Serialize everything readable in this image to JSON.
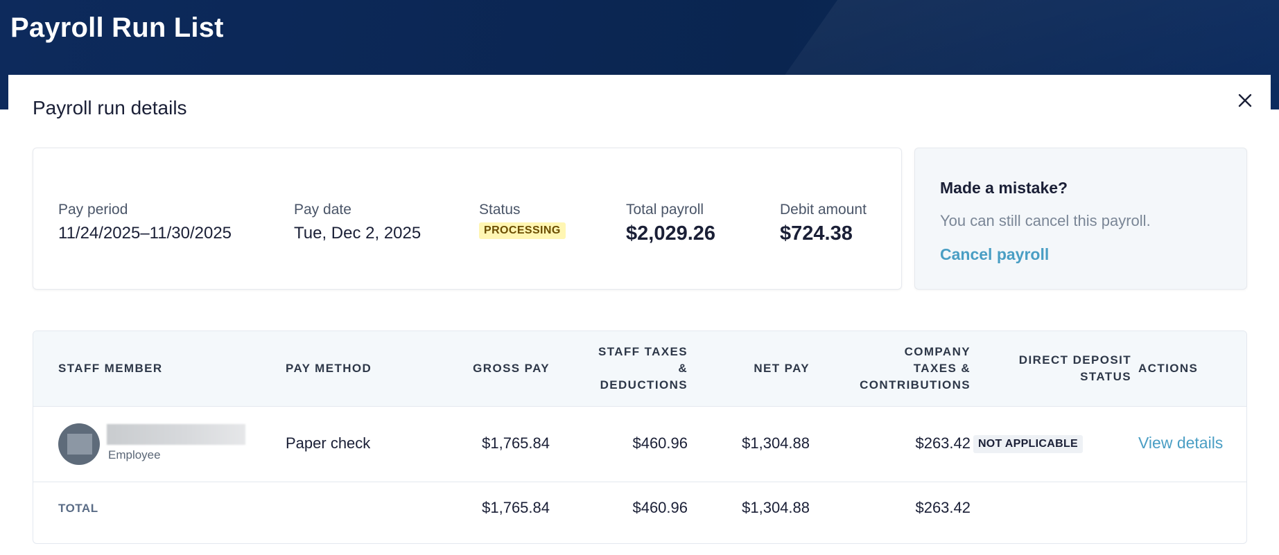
{
  "app": {
    "title": "Payroll Run List"
  },
  "modal": {
    "title": "Payroll run details"
  },
  "summary": {
    "pay_period": {
      "label": "Pay period",
      "value": "11/24/2025–11/30/2025"
    },
    "pay_date": {
      "label": "Pay date",
      "value": "Tue, Dec 2, 2025"
    },
    "status": {
      "label": "Status",
      "value": "PROCESSING"
    },
    "total_payroll": {
      "label": "Total payroll",
      "value": "$2,029.26"
    },
    "debit_amount": {
      "label": "Debit amount",
      "value": "$724.38"
    }
  },
  "mistake": {
    "title": "Made a mistake?",
    "text": "You can still cancel this payroll.",
    "action": "Cancel payroll"
  },
  "table": {
    "headers": {
      "staff_member": "STAFF MEMBER",
      "pay_method": "PAY METHOD",
      "gross_pay": "GROSS PAY",
      "staff_taxes_1": "STAFF TAXES",
      "staff_taxes_2": "&",
      "staff_taxes_3": "DEDUCTIONS",
      "net_pay": "NET PAY",
      "company_taxes_1": "COMPANY",
      "company_taxes_2": "TAXES &",
      "company_taxes_3": "CONTRIBUTIONS",
      "dd_status_1": "DIRECT DEPOSIT",
      "dd_status_2": "STATUS",
      "actions": "ACTIONS"
    },
    "rows": [
      {
        "role": "Employee",
        "pay_method": "Paper check",
        "gross_pay": "$1,765.84",
        "staff_taxes": "$460.96",
        "net_pay": "$1,304.88",
        "company_taxes": "$263.42",
        "dd_status": "NOT APPLICABLE",
        "action": "View details"
      }
    ],
    "total": {
      "label": "TOTAL",
      "gross_pay": "$1,765.84",
      "staff_taxes": "$460.96",
      "net_pay": "$1,304.88",
      "company_taxes": "$263.42"
    }
  }
}
